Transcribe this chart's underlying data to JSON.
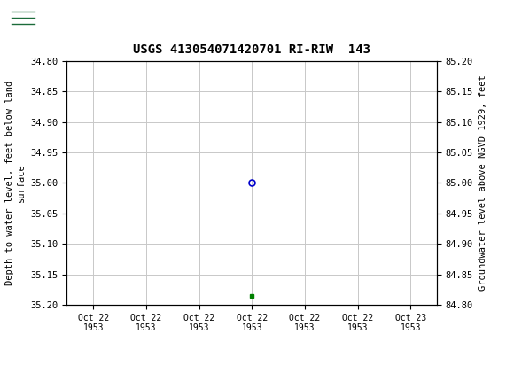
{
  "title": "USGS 413054071420701 RI-RIW  143",
  "ylabel_left": "Depth to water level, feet below land\nsurface",
  "ylabel_right": "Groundwater level above NGVD 1929, feet",
  "ylim_left": [
    35.2,
    34.8
  ],
  "ylim_right": [
    84.8,
    85.2
  ],
  "yticks_left": [
    34.8,
    34.85,
    34.9,
    34.95,
    35.0,
    35.05,
    35.1,
    35.15,
    35.2
  ],
  "yticks_right": [
    84.8,
    84.85,
    84.9,
    84.95,
    85.0,
    85.05,
    85.1,
    85.15,
    85.2
  ],
  "data_point_x": 4.0,
  "data_point_y": 35.0,
  "data_square_x": 4.0,
  "data_square_y": 35.185,
  "x_tick_labels": [
    "Oct 22\n1953",
    "Oct 22\n1953",
    "Oct 22\n1953",
    "Oct 22\n1953",
    "Oct 22\n1953",
    "Oct 22\n1953",
    "Oct 23\n1953"
  ],
  "x_tick_positions": [
    1,
    2,
    3,
    4,
    5,
    6,
    7
  ],
  "xlim": [
    0.5,
    7.5
  ],
  "header_color": "#1b6b3a",
  "grid_color": "#c8c8c8",
  "point_color": "#0000cc",
  "square_color": "#008000",
  "legend_color": "#008000",
  "background_color": "#ffffff",
  "plot_bg_color": "#ffffff",
  "border_color": "#000000"
}
